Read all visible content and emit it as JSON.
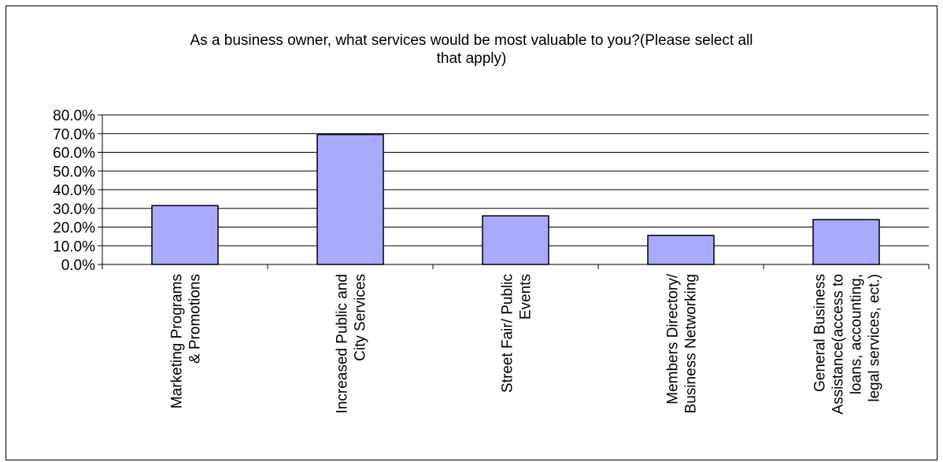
{
  "chart_data": {
    "type": "bar",
    "title_lines": [
      "As a business owner, what services would be most valuable to you?(Please select all",
      "that apply)"
    ],
    "categories": [
      [
        "Marketing Programs",
        "& Promotions"
      ],
      [
        "Increased Public and",
        "City Services"
      ],
      [
        "Street Fair/ Public",
        "Events"
      ],
      [
        "Members Directory/",
        "Business Networking"
      ],
      [
        "General Business",
        "Assistance(access to",
        "loans, accounting,",
        "legal services, ect.)"
      ]
    ],
    "values": [
      31.5,
      69.5,
      26.0,
      15.5,
      24.0
    ],
    "ylim": [
      0,
      80
    ],
    "ytick_labels": [
      "0.0%",
      "10.0%",
      "20.0%",
      "30.0%",
      "40.0%",
      "50.0%",
      "60.0%",
      "70.0%",
      "80.0%"
    ],
    "grid": true,
    "legend": "none",
    "colors": {
      "bar_fill": "#a9aaff",
      "bar_stroke": "#000000",
      "grid": "#000000"
    }
  }
}
